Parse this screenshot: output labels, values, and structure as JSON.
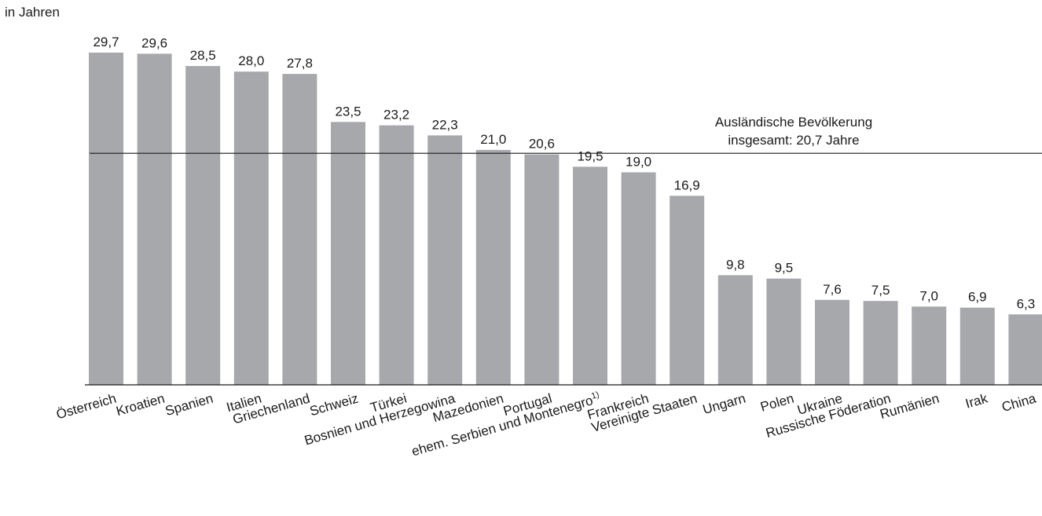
{
  "chart_data": {
    "type": "bar",
    "ylabel": "in Jahren",
    "categories": [
      "Österreich",
      "Kroatien",
      "Spanien",
      "Italien",
      "Griechenland",
      "Schweiz",
      "Türkei",
      "Bosnien und Herzegowina",
      "Mazedonien",
      "Portugal",
      "ehem. Serbien und Montenegro",
      "Frankreich",
      "Vereinigte Staaten",
      "Ungarn",
      "Polen",
      "Ukraine",
      "Russische Föderation",
      "Rumänien",
      "Irak",
      "China"
    ],
    "footnote_marks": [
      "",
      "",
      "",
      "",
      "",
      "",
      "",
      "",
      "",
      "",
      "1)",
      "",
      "",
      "",
      "",
      "",
      "",
      "",
      "",
      ""
    ],
    "values": [
      29.7,
      29.6,
      28.5,
      28.0,
      27.8,
      23.5,
      23.2,
      22.3,
      21.0,
      20.6,
      19.5,
      19.0,
      16.9,
      9.8,
      9.5,
      7.6,
      7.5,
      7.0,
      6.9,
      6.3
    ],
    "value_labels": [
      "29,7",
      "29,6",
      "28,5",
      "28,0",
      "27,8",
      "23,5",
      "23,2",
      "22,3",
      "21,0",
      "20,6",
      "19,5",
      "19,0",
      "16,9",
      "9,8",
      "9,5",
      "7,6",
      "7,5",
      "7,0",
      "6,9",
      "6,3"
    ],
    "ylim": [
      0,
      29.7
    ],
    "reference_line": {
      "value": 20.7,
      "label_line1": "Ausländische Bevölkerung",
      "label_line2": "insgesamt: 20,7 Jahre"
    },
    "bar_color": "#a7a8ab",
    "grid": false,
    "legend": "none"
  }
}
